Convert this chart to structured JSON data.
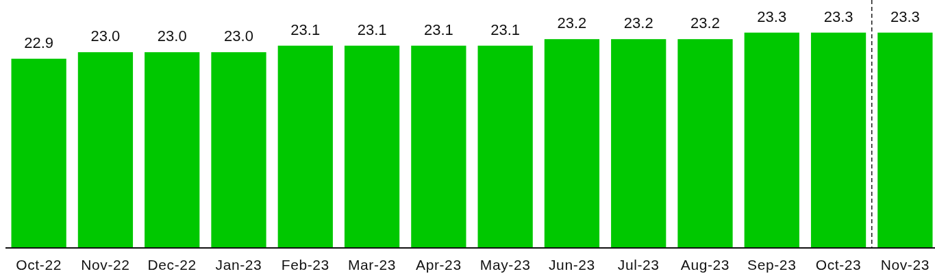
{
  "chart_data": {
    "type": "bar",
    "categories": [
      "Oct-22",
      "Nov-22",
      "Dec-22",
      "Jan-23",
      "Feb-23",
      "Mar-23",
      "Apr-23",
      "May-23",
      "Jun-23",
      "Jul-23",
      "Aug-23",
      "Sep-23",
      "Oct-23",
      "Nov-23"
    ],
    "values": [
      22.9,
      23.0,
      23.0,
      23.0,
      23.1,
      23.1,
      23.1,
      23.1,
      23.2,
      23.2,
      23.2,
      23.3,
      23.3,
      23.3
    ],
    "value_labels": [
      "22.9",
      "23.0",
      "23.0",
      "23.0",
      "23.1",
      "23.1",
      "23.1",
      "23.1",
      "23.2",
      "23.2",
      "23.2",
      "23.3",
      "23.3",
      "23.3"
    ],
    "color": "#00c800",
    "ylim": [
      20,
      23.8
    ],
    "tick_labels": "x"
  }
}
